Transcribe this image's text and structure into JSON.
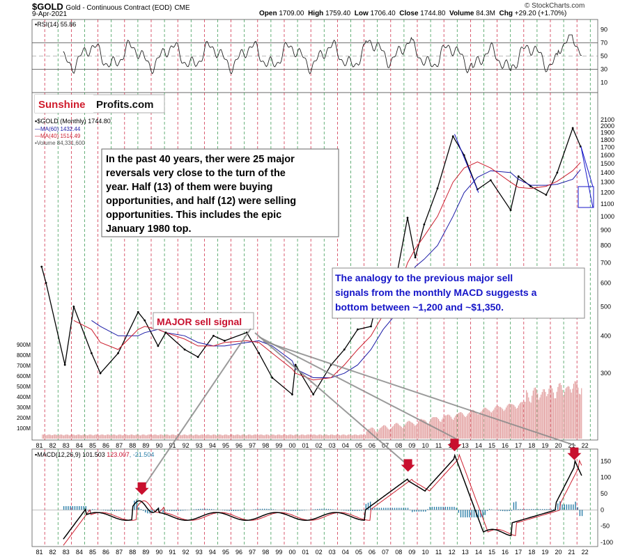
{
  "header": {
    "symbol": "$GOLD",
    "description": "Gold - Continuous Contract (EOD)",
    "exchange": "CME",
    "date": "9-Apr-2021",
    "open": "1709.00",
    "high": "1759.40",
    "low": "1706.40",
    "close": "1744.80",
    "volume": "84.3M",
    "chg": "+29.20 (+1.70%)",
    "copyright": "© StockCharts.com"
  },
  "colors": {
    "red_line": "#c8102e",
    "green_line": "#1e8b3a",
    "ma60": "#1a1aa6",
    "ma40": "#cc1f2f",
    "macd_hist": "#2a7ea8",
    "annotation_blue": "#1515c8",
    "annotation_red": "#c8102e"
  },
  "logo": {
    "part1": "Sunshine",
    "part2": "Profits.com"
  },
  "rsi": {
    "label": "RSI(14) 55.86",
    "ticks": [
      "90",
      "70",
      "50",
      "30",
      "10"
    ]
  },
  "price": {
    "legend": {
      "symbol": "$GOLD (Monthly) 1744.80",
      "ma60": "MA(60) 1432.44",
      "ma40": "MA(40) 1514.49",
      "volume": "Volume 84,331,600"
    },
    "right_ticks": [
      "2100",
      "2000",
      "1900",
      "1800",
      "1700",
      "1600",
      "1500",
      "1400",
      "1300",
      "1200",
      "1100",
      "1000",
      "900",
      "800",
      "700",
      "600",
      "500",
      "400",
      "300"
    ],
    "volume_ticks": [
      "900M",
      "800M",
      "700M",
      "600M",
      "500M",
      "400M",
      "300M",
      "200M",
      "100M"
    ]
  },
  "macd": {
    "label": "MACD(12,26,9)",
    "macd_value": "101.503",
    "signal_value": "123.007",
    "hist_value": "-21.504",
    "ticks": [
      "150",
      "100",
      "50",
      "0",
      "-50",
      "-100"
    ]
  },
  "x_axis": {
    "years": [
      "81",
      "82",
      "83",
      "84",
      "85",
      "86",
      "87",
      "88",
      "89",
      "90",
      "91",
      "92",
      "93",
      "94",
      "95",
      "96",
      "97",
      "98",
      "99",
      "00",
      "01",
      "02",
      "03",
      "04",
      "05",
      "06",
      "07",
      "08",
      "09",
      "10",
      "11",
      "12",
      "13",
      "14",
      "15",
      "16",
      "17",
      "18",
      "19",
      "20",
      "21",
      "22"
    ]
  },
  "annotations": {
    "main_text": [
      "In the past 40 years, ther were 25 major",
      "reversals very close to the turn of the",
      "year. Half (13) of them were buying",
      "opportunities, and half (12) were selling",
      "opportunities. This includes the epic",
      "January 1980 top."
    ],
    "blue_text": [
      "The analogy to the previous major sell",
      "signals from the monthly MACD suggests a",
      "bottom between ~1,200 and ~$1,350."
    ],
    "sell_signal": "MAJOR sell signal"
  },
  "chart_data": {
    "type": "line",
    "title": "$GOLD Gold - Continuous Contract (EOD) CME",
    "x": [
      "1980-09",
      "1981-01",
      "1982-06",
      "1983-02",
      "1984-06",
      "1985-02",
      "1986-06",
      "1987-12",
      "1988-06",
      "1989-06",
      "1990-01",
      "1991-06",
      "1992-06",
      "1993-08",
      "1994-06",
      "1996-02",
      "1997-01",
      "1998-01",
      "1999-07",
      "1999-10",
      "2001-02",
      "2002-06",
      "2003-06",
      "2004-06",
      "2005-06",
      "2006-05",
      "2007-06",
      "2008-03",
      "2008-10",
      "2009-06",
      "2010-06",
      "2011-08",
      "2012-06",
      "2013-06",
      "2014-06",
      "2015-12",
      "2016-07",
      "2017-06",
      "2018-08",
      "2019-06",
      "2020-08",
      "2021-03"
    ],
    "series": [
      {
        "name": "$GOLD (Monthly)",
        "values": [
          680,
          600,
          320,
          500,
          350,
          300,
          350,
          480,
          450,
          370,
          410,
          360,
          340,
          400,
          385,
          410,
          350,
          290,
          255,
          320,
          255,
          320,
          360,
          420,
          430,
          640,
          660,
          990,
          730,
          940,
          1240,
          1850,
          1600,
          1230,
          1320,
          1050,
          1360,
          1260,
          1180,
          1400,
          1970,
          1710
        ]
      },
      {
        "name": "MA(60)",
        "values": [
          null,
          null,
          null,
          null,
          450,
          430,
          400,
          400,
          410,
          420,
          410,
          400,
          380,
          370,
          370,
          380,
          385,
          370,
          330,
          310,
          290,
          290,
          300,
          320,
          360,
          420,
          480,
          600,
          680,
          720,
          800,
          1000,
          1200,
          1350,
          1420,
          1400,
          1330,
          1270,
          1270,
          1280,
          1330,
          1432
        ]
      },
      {
        "name": "MA(40)",
        "values": [
          null,
          null,
          null,
          450,
          420,
          380,
          360,
          420,
          430,
          420,
          410,
          390,
          370,
          370,
          380,
          385,
          380,
          350,
          310,
          300,
          285,
          290,
          320,
          360,
          400,
          470,
          560,
          700,
          780,
          860,
          1000,
          1300,
          1450,
          1520,
          1450,
          1300,
          1250,
          1240,
          1260,
          1310,
          1420,
          1514
        ]
      }
    ],
    "xlabel": "",
    "ylabel": "",
    "ylim": [
      200,
      2100
    ],
    "log_scale": true,
    "grid": true,
    "legend": "top-left",
    "rsi": {
      "name": "RSI(14)",
      "last": 55.86,
      "ylim": [
        0,
        100
      ],
      "overbought": 70,
      "oversold": 30
    },
    "macd": {
      "params": "12,26,9",
      "macd": 101.503,
      "signal": 123.007,
      "hist": -21.504,
      "ylim": [
        -100,
        170
      ]
    }
  }
}
